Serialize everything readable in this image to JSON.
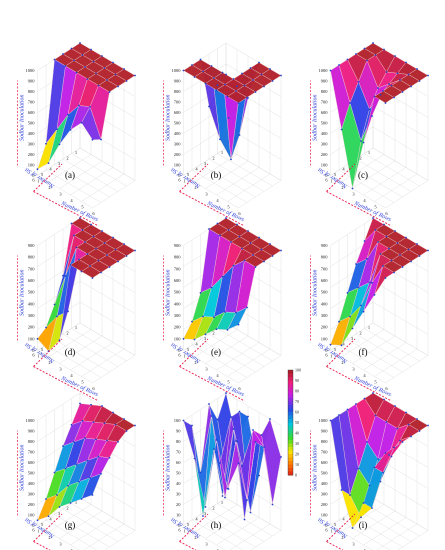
{
  "figure": {
    "panel_labels": [
      "(a)",
      "(b)",
      "(c)",
      "(d)",
      "(e)",
      "(f)",
      "(g)",
      "(h)",
      "(i)"
    ]
  },
  "colors": {
    "arrow": "#e8194a",
    "axis_title": "#2a3bd6",
    "top_plateau": "#b3222c",
    "grid_points": "#2244cc"
  },
  "chart_data": [
    {
      "type": "surface",
      "panel": "(a)",
      "zlabel": "Sodbar Inoculation",
      "xlabel": "Number of Rows",
      "ylabel": "Number of Sit",
      "zticks": [
        0,
        100,
        200,
        300,
        400,
        500,
        600,
        700,
        800,
        900,
        1000
      ],
      "xticks": [
        1,
        2,
        3,
        4,
        5,
        6
      ],
      "yticks": [
        1,
        2,
        3,
        4,
        5,
        6
      ],
      "zlim": [
        0,
        1000
      ],
      "z": [
        [
          1000,
          1000,
          1000,
          1000,
          1000,
          1000
        ],
        [
          1000,
          1000,
          1000,
          1000,
          1000,
          1000
        ],
        [
          1000,
          1000,
          1000,
          1000,
          1000,
          1000
        ],
        [
          1000,
          1000,
          1000,
          1000,
          1000,
          1000
        ],
        [
          250,
          450,
          650,
          800,
          850,
          600
        ],
        [
          60,
          180,
          420,
          620,
          750,
          650
        ]
      ]
    },
    {
      "type": "surface",
      "panel": "(b)",
      "zlabel": "Sodbar Inoculation",
      "xlabel": "Number of Rows",
      "ylabel": "Number of Sit",
      "zticks": [
        0,
        100,
        200,
        300,
        400,
        500,
        600,
        700,
        800,
        900,
        1000
      ],
      "xticks": [
        1,
        2,
        3,
        4,
        5,
        6
      ],
      "yticks": [
        1,
        2,
        3,
        4,
        5,
        6
      ],
      "zlim": [
        0,
        1000
      ],
      "z": [
        [
          700,
          650,
          600,
          1000,
          1000,
          1000
        ],
        [
          650,
          400,
          300,
          1000,
          1000,
          1000
        ],
        [
          500,
          250,
          120,
          1000,
          1000,
          1000
        ],
        [
          1000,
          1000,
          1000,
          1000,
          1000,
          1000
        ],
        [
          1000,
          1000,
          1000,
          1000,
          1000,
          1000
        ],
        [
          1000,
          1000,
          1000,
          1000,
          1000,
          1000
        ]
      ]
    },
    {
      "type": "surface",
      "panel": "(c)",
      "zlabel": "Sodbar Inoculation",
      "xlabel": "Number of Rows",
      "ylabel": "Number of Sit",
      "zticks": [
        0,
        100,
        200,
        300,
        400,
        500,
        600,
        700,
        800,
        900,
        1000
      ],
      "xticks": [
        1,
        2,
        3,
        4,
        5,
        6
      ],
      "yticks": [
        1,
        2,
        3,
        4,
        5,
        6
      ],
      "zlim": [
        0,
        1000
      ],
      "z": [
        [
          1000,
          1000,
          1000,
          1000,
          1000,
          1000
        ],
        [
          1000,
          1000,
          900,
          950,
          1000,
          1000
        ],
        [
          1000,
          1000,
          800,
          900,
          1000,
          1000
        ],
        [
          1000,
          850,
          650,
          850,
          1000,
          1000
        ],
        [
          1000,
          700,
          400,
          700,
          1000,
          1000
        ],
        [
          1000,
          500,
          0,
          500,
          1000,
          1000
        ]
      ]
    },
    {
      "type": "surface",
      "panel": "(d)",
      "zlabel": "Sodbar Inoculation",
      "xlabel": "Number of Rows",
      "ylabel": "Number of Sit",
      "zticks": [
        0,
        100,
        200,
        300,
        400,
        500,
        600,
        700,
        800,
        900
      ],
      "xticks": [
        1,
        2,
        3,
        4,
        5,
        6
      ],
      "yticks": [
        1,
        2,
        3,
        4,
        5,
        6
      ],
      "zlim": [
        0,
        900
      ],
      "z": [
        [
          900,
          900,
          900,
          900,
          900,
          900
        ],
        [
          900,
          900,
          900,
          900,
          900,
          900
        ],
        [
          500,
          900,
          900,
          900,
          900,
          900
        ],
        [
          300,
          600,
          900,
          900,
          900,
          900
        ],
        [
          150,
          300,
          400,
          900,
          900,
          900
        ],
        [
          100,
          50,
          200,
          900,
          900,
          900
        ]
      ]
    },
    {
      "type": "surface",
      "panel": "(e)",
      "zlabel": "Sodbar Inoculation",
      "xlabel": "Number of Rows",
      "ylabel": "Number of Sit",
      "zticks": [
        0,
        100,
        200,
        300,
        400,
        500,
        600,
        700,
        800,
        900
      ],
      "xticks": [
        1,
        2,
        3,
        4,
        5,
        6
      ],
      "yticks": [
        1,
        2,
        3,
        4,
        5,
        6
      ],
      "zlim": [
        0,
        900
      ],
      "z": [
        [
          900,
          900,
          900,
          900,
          900,
          900
        ],
        [
          900,
          900,
          900,
          900,
          900,
          900
        ],
        [
          900,
          900,
          900,
          900,
          900,
          900
        ],
        [
          400,
          500,
          650,
          800,
          900,
          900
        ],
        [
          200,
          300,
          350,
          450,
          500,
          600
        ],
        [
          100,
          150,
          250,
          350,
          400,
          500
        ]
      ]
    },
    {
      "type": "surface",
      "panel": "(f)",
      "zlabel": "Sodbar Inoculation",
      "xlabel": "Number of Rows",
      "ylabel": "Number of Sit",
      "zticks": [
        0,
        100,
        200,
        300,
        400,
        500,
        600,
        700,
        800,
        900
      ],
      "xticks": [
        1,
        2,
        3,
        4,
        5,
        6
      ],
      "yticks": [
        1,
        2,
        3,
        4,
        5,
        6
      ],
      "zlim": [
        0,
        900
      ],
      "z": [
        [
          900,
          900,
          900,
          900,
          900,
          900
        ],
        [
          750,
          900,
          900,
          900,
          900,
          900
        ],
        [
          600,
          700,
          900,
          900,
          900,
          900
        ],
        [
          400,
          500,
          600,
          900,
          900,
          900
        ],
        [
          200,
          300,
          450,
          700,
          900,
          900
        ],
        [
          50,
          100,
          300,
          500,
          700,
          900
        ]
      ]
    },
    {
      "type": "surface",
      "panel": "(g)",
      "zlabel": "Sodbar Inoculation",
      "xlabel": "Number of Rows",
      "ylabel": "Number of Sit",
      "zticks": [
        0,
        100,
        200,
        300,
        400,
        500,
        600,
        700,
        800,
        900,
        1000
      ],
      "xticks": [
        1,
        2,
        3,
        4,
        5,
        6
      ],
      "yticks": [
        1,
        2,
        3,
        4,
        5,
        6
      ],
      "zlim": [
        0,
        1000
      ],
      "z": [
        [
          900,
          950,
          1000,
          1000,
          1000,
          1000
        ],
        [
          750,
          850,
          900,
          950,
          1000,
          1000
        ],
        [
          600,
          700,
          800,
          850,
          900,
          950
        ],
        [
          400,
          500,
          600,
          700,
          800,
          850
        ],
        [
          200,
          300,
          450,
          550,
          650,
          750
        ],
        [
          50,
          150,
          300,
          400,
          500,
          600
        ]
      ]
    },
    {
      "type": "surface",
      "panel": "(h)",
      "zlabel": "Sodbar Inoculation",
      "xlabel": "Number of Rows",
      "ylabel": "Number of Sit",
      "zticks": [
        0,
        10,
        20,
        30,
        40,
        50,
        60,
        70,
        80,
        90,
        100
      ],
      "xticks": [
        1,
        2,
        3,
        4,
        5,
        6
      ],
      "yticks": [
        1,
        2,
        3,
        4,
        5,
        6
      ],
      "zlim": [
        0,
        100
      ],
      "colorbar_ticks": [
        0,
        10,
        20,
        30,
        40,
        50,
        60,
        70,
        80,
        90,
        100
      ],
      "z": [
        [
          100,
          60,
          90,
          40,
          100,
          70
        ],
        [
          80,
          20,
          100,
          10,
          90,
          30
        ],
        [
          100,
          50,
          100,
          60,
          100,
          90
        ],
        [
          40,
          100,
          30,
          100,
          20,
          100
        ],
        [
          90,
          10,
          80,
          40,
          100,
          50
        ],
        [
          100,
          70,
          30,
          100,
          60,
          90
        ]
      ]
    },
    {
      "type": "surface",
      "panel": "(i)",
      "zlabel": "Sodbar Inoculation",
      "xlabel": "Number of Rows",
      "ylabel": "Number of Sit",
      "zticks": [
        0,
        100,
        200,
        300,
        400,
        500,
        600,
        700,
        800,
        900,
        1000
      ],
      "xticks": [
        1,
        2,
        3,
        4,
        5,
        6
      ],
      "yticks": [
        1,
        2,
        3,
        4,
        5,
        6
      ],
      "zlim": [
        0,
        1000
      ],
      "z": [
        [
          1000,
          1000,
          1000,
          1000,
          1000,
          1000
        ],
        [
          1000,
          900,
          900,
          900,
          1000,
          1000
        ],
        [
          1000,
          700,
          600,
          700,
          900,
          1000
        ],
        [
          1000,
          500,
          400,
          500,
          800,
          1000
        ],
        [
          1000,
          300,
          150,
          300,
          700,
          1000
        ],
        [
          1000,
          400,
          100,
          400,
          800,
          1000
        ]
      ]
    }
  ]
}
